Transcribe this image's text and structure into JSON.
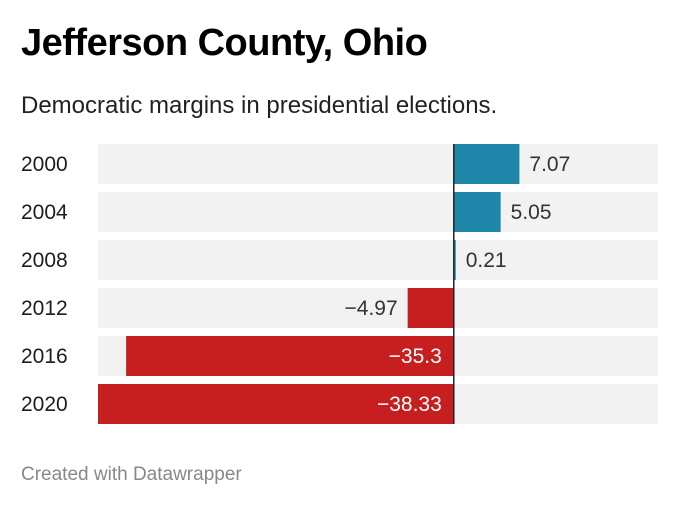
{
  "title": "Jefferson County, Ohio",
  "subtitle": "Democratic margins in presidential elections.",
  "footer": "Created with Datawrapper",
  "colors": {
    "positive": "#1f86aa",
    "negative": "#c71f1f",
    "track": "#f2f2f2",
    "axis": "#222222"
  },
  "chart_data": {
    "type": "bar",
    "orientation": "horizontal",
    "title": "Jefferson County, Ohio",
    "subtitle": "Democratic margins in presidential elections.",
    "categories": [
      "2000",
      "2004",
      "2008",
      "2012",
      "2016",
      "2020"
    ],
    "values": [
      7.07,
      5.05,
      0.21,
      -4.97,
      -35.3,
      -38.33
    ],
    "labels": [
      "7.07",
      "5.05",
      "0.21",
      "−4.97",
      "−35.3",
      "−38.33"
    ],
    "xlim": [
      -38.33,
      22
    ],
    "grid": false,
    "legend": "none"
  }
}
